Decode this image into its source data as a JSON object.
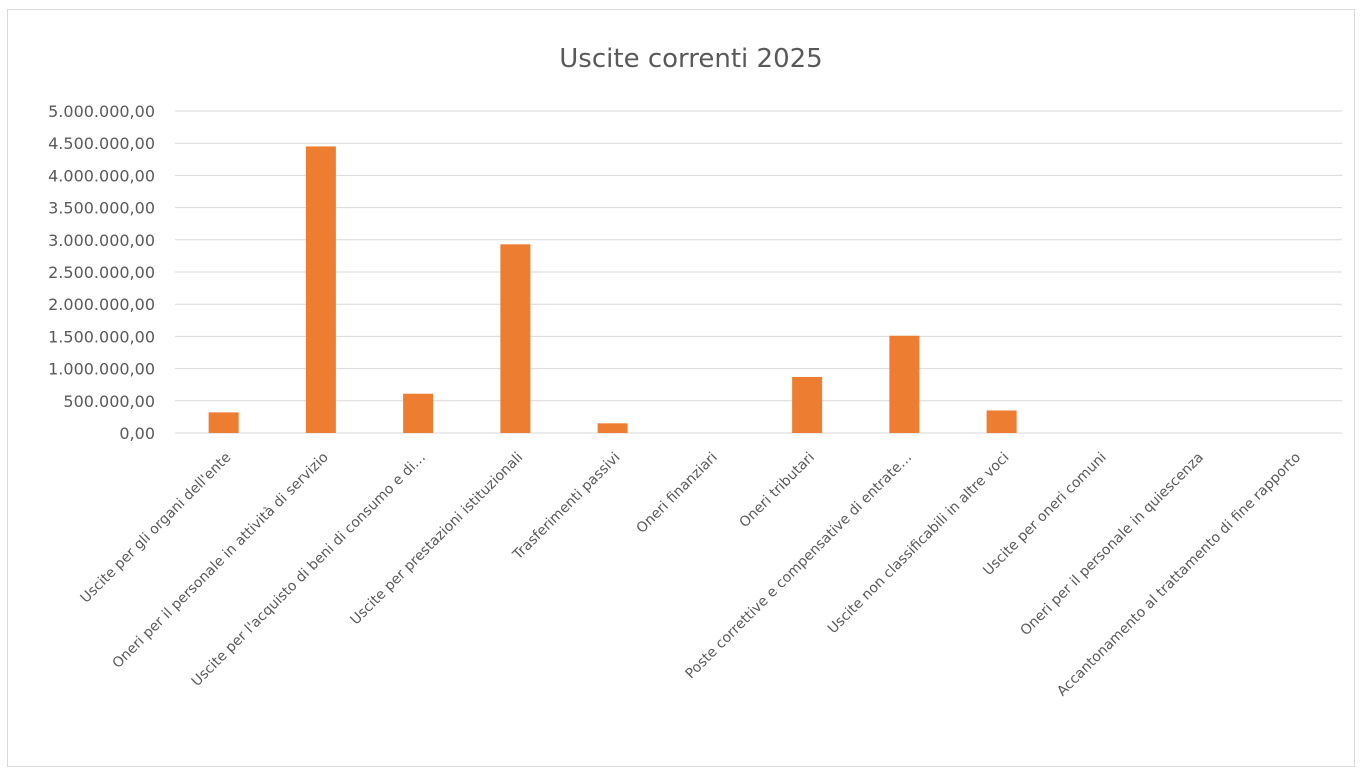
{
  "chart_data": {
    "type": "bar",
    "title": "Uscite correnti 2025",
    "xlabel": "",
    "ylabel": "",
    "ylim": [
      0,
      5000000
    ],
    "ytick_step": 500000,
    "ytick_labels": [
      "0,00",
      "500.000,00",
      "1.000.000,00",
      "1.500.000,00",
      "2.000.000,00",
      "2.500.000,00",
      "3.000.000,00",
      "3.500.000,00",
      "4.000.000,00",
      "4.500.000,00",
      "5.000.000,00"
    ],
    "grid": true,
    "legend": "none",
    "bar_color": "#ED7D31",
    "categories": [
      "Uscite per gli organi dell'ente",
      "Oneri per il personale in attività di servizio",
      "Uscite per l'acquisto di beni di consumo e di…",
      "Uscite per prestazioni istituzionali",
      "Trasferimenti passivi",
      "Oneri finanziari",
      "Oneri tributari",
      "Poste correttive e compensative di entrate…",
      "Uscite non classificabili in altre voci",
      "Uscite per oneri comuni",
      "Oneri per il personale in quiescenza",
      "Accantonamento al trattamento di fine rapporto"
    ],
    "values": [
      320000,
      4450000,
      610000,
      2930000,
      150000,
      0,
      870000,
      1510000,
      350000,
      0,
      0,
      0
    ]
  }
}
